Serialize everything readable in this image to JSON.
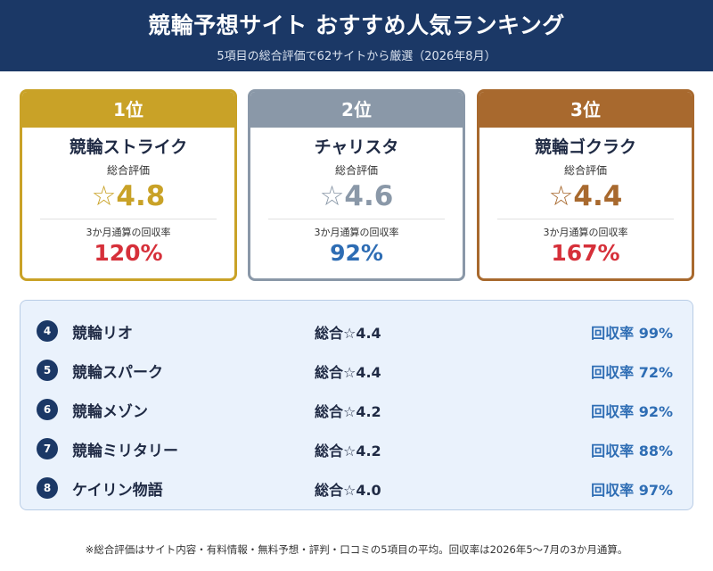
{
  "header": {
    "title": "競輪予想サイト おすすめ人気ランキング",
    "subtitle": "5項目の総合評価で62サイトから厳選（2026年8月）"
  },
  "top3": [
    {
      "rank": "1位",
      "name": "競輪ストライク",
      "eval_label": "総合評価",
      "score": "☆4.8",
      "recovery_label": "3か月通算の回収率",
      "recovery": "120%"
    },
    {
      "rank": "2位",
      "name": "チャリスタ",
      "eval_label": "総合評価",
      "score": "☆4.6",
      "recovery_label": "3か月通算の回収率",
      "recovery": "92%"
    },
    {
      "rank": "3位",
      "name": "競輪ゴクラク",
      "eval_label": "総合評価",
      "score": "☆4.4",
      "recovery_label": "3か月通算の回収率",
      "recovery": "167%"
    }
  ],
  "ranking": [
    {
      "num": "4",
      "name": "競輪リオ",
      "score": "総合☆4.4",
      "recovery": "回収率 99%"
    },
    {
      "num": "5",
      "name": "競輪スパーク",
      "score": "総合☆4.4",
      "recovery": "回収率 72%"
    },
    {
      "num": "6",
      "name": "競輪メゾン",
      "score": "総合☆4.2",
      "recovery": "回収率 92%"
    },
    {
      "num": "7",
      "name": "競輪ミリタリー",
      "score": "総合☆4.2",
      "recovery": "回収率 88%"
    },
    {
      "num": "8",
      "name": "ケイリン物語",
      "score": "総合☆4.0",
      "recovery": "回収率 97%"
    }
  ],
  "footnote": "※総合評価はサイト内容・有料情報・無料予想・評判・口コミの5項目の平均。回収率は2026年5〜7月の3か月通算。",
  "colors": {
    "header_bg": "#1b3866",
    "gold": "#c9a227",
    "silver": "#8a98a8",
    "bronze": "#a8692e",
    "red": "#d6303a",
    "blue": "#2e6db4"
  }
}
